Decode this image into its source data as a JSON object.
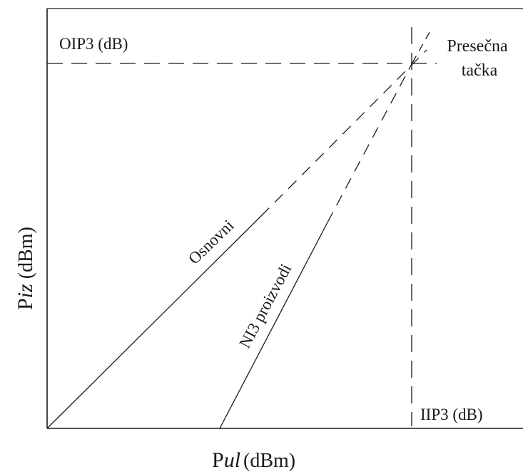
{
  "axes": {
    "y_label_prefix": "P",
    "y_label_sub": "iz",
    "y_label_unit": " (dBm)",
    "x_label_prefix": "P",
    "x_label_sub": "ul",
    "x_label_unit": "(dBm)"
  },
  "markers": {
    "oip3": "OIP3 (dB)",
    "iip3": "IIP3 (dB)"
  },
  "intercept": {
    "line1": "Presečna",
    "line2": "tačka"
  },
  "lines": {
    "fundamental": "Osnovni",
    "third_order": "NI3 proizvodi"
  },
  "colors": {
    "stroke": "#1a1a1a"
  }
}
